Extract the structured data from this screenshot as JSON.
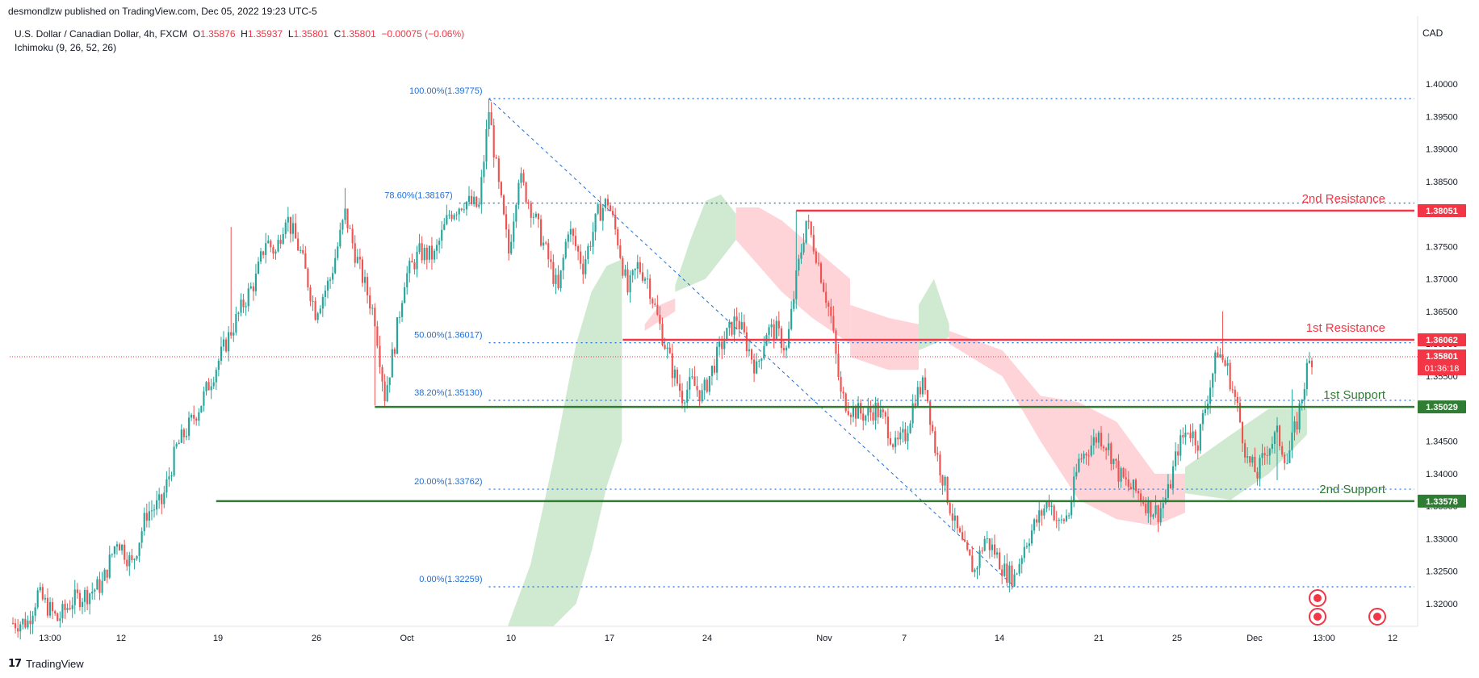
{
  "header": {
    "published": "desmondlzw published on TradingView.com, Dec 05, 2022 19:23 UTC-5",
    "symbol": "U.S. Dollar / Canadian Dollar, 4h, FXCM",
    "o_label": "O",
    "o_value": "1.35876",
    "h_label": "H",
    "h_value": "1.35937",
    "l_label": "L",
    "l_value": "1.35801",
    "c_label": "C",
    "c_value": "1.35801",
    "change": "−0.00075 (−0.06%)",
    "indicator": "Ichimoku (9, 26, 52, 26)",
    "currency": "CAD"
  },
  "footer": {
    "brand": "TradingView"
  },
  "colors": {
    "bull": "#26a69a",
    "bear": "#ef5350",
    "resistance": "#f23645",
    "support": "#2e7d32",
    "fib": "#1e6fd9",
    "cloud_bull": "#c8e6c9",
    "cloud_bear": "#ffcdd2"
  },
  "chart_data": {
    "type": "candlestick",
    "y_range": [
      1.3165,
      1.403
    ],
    "y_ticks": [
      "1.40000",
      "1.39500",
      "1.39000",
      "1.38500",
      "1.38000",
      "1.37500",
      "1.37000",
      "1.36500",
      "1.36000",
      "1.35500",
      "1.35000",
      "1.34500",
      "1.34000",
      "1.33500",
      "1.33000",
      "1.32500",
      "1.32000"
    ],
    "x_ticks": [
      "13:00",
      "12",
      "19",
      "26",
      "Oct",
      "10",
      "17",
      "24",
      "Nov",
      "7",
      "14",
      "21",
      "25",
      "Dec",
      "13:00",
      "12"
    ],
    "fib_levels": [
      {
        "label": "100.00%(1.39775)",
        "value": 1.39775
      },
      {
        "label": "78.60%(1.38167)",
        "value": 1.38167
      },
      {
        "label": "50.00%(1.36017)",
        "value": 1.36017
      },
      {
        "label": "38.20%(1.35130)",
        "value": 1.3513
      },
      {
        "label": "20.00%(1.33762)",
        "value": 1.33762
      },
      {
        "label": "0.00%(1.32259)",
        "value": 1.32259
      }
    ],
    "levels": [
      {
        "name": "2nd Resistance",
        "value": 1.38051,
        "tag": "1.38051",
        "kind": "resistance"
      },
      {
        "name": "1st Resistance",
        "value": 1.36062,
        "tag": "1.36062",
        "kind": "resistance"
      },
      {
        "name": "1st Support",
        "value": 1.35029,
        "tag": "1.35029",
        "kind": "support"
      },
      {
        "name": "2nd Support",
        "value": 1.33578,
        "tag": "1.33578",
        "kind": "support"
      }
    ],
    "last_price": {
      "value": 1.35801,
      "tag": "1.35801",
      "countdown": "01:36:18"
    },
    "price_path": [
      [
        0,
        1.317
      ],
      [
        6,
        1.3172
      ],
      [
        10,
        1.3215
      ],
      [
        18,
        1.3175
      ],
      [
        24,
        1.3205
      ],
      [
        30,
        1.3215
      ],
      [
        36,
        1.323
      ],
      [
        42,
        1.33
      ],
      [
        48,
        1.326
      ],
      [
        54,
        1.334
      ],
      [
        60,
        1.3355
      ],
      [
        66,
        1.344
      ],
      [
        72,
        1.348
      ],
      [
        76,
        1.351
      ],
      [
        82,
        1.3565
      ],
      [
        88,
        1.362
      ],
      [
        94,
        1.367
      ],
      [
        98,
        1.37
      ],
      [
        102,
        1.376
      ],
      [
        106,
        1.374
      ],
      [
        110,
        1.38
      ],
      [
        116,
        1.374
      ],
      [
        122,
        1.365
      ],
      [
        128,
        1.37
      ],
      [
        134,
        1.38
      ],
      [
        138,
        1.374
      ],
      [
        142,
        1.369
      ],
      [
        146,
        1.364
      ],
      [
        150,
        1.352
      ],
      [
        154,
        1.36
      ],
      [
        158,
        1.37
      ],
      [
        164,
        1.374
      ],
      [
        170,
        1.3735
      ],
      [
        176,
        1.38
      ],
      [
        182,
        1.382
      ],
      [
        188,
        1.381
      ],
      [
        192,
        1.396
      ],
      [
        196,
        1.384
      ],
      [
        200,
        1.374
      ],
      [
        204,
        1.386
      ],
      [
        210,
        1.38
      ],
      [
        216,
        1.373
      ],
      [
        220,
        1.368
      ],
      [
        224,
        1.378
      ],
      [
        230,
        1.372
      ],
      [
        236,
        1.38
      ],
      [
        240,
        1.382
      ],
      [
        244,
        1.376
      ],
      [
        248,
        1.368
      ],
      [
        252,
        1.372
      ],
      [
        256,
        1.37
      ],
      [
        260,
        1.364
      ],
      [
        266,
        1.356
      ],
      [
        270,
        1.352
      ],
      [
        274,
        1.354
      ],
      [
        278,
        1.352
      ],
      [
        282,
        1.356
      ],
      [
        286,
        1.36
      ],
      [
        292,
        1.364
      ],
      [
        296,
        1.36
      ],
      [
        300,
        1.356
      ],
      [
        304,
        1.362
      ],
      [
        308,
        1.362
      ],
      [
        312,
        1.359
      ],
      [
        316,
        1.37
      ],
      [
        320,
        1.379
      ],
      [
        324,
        1.374
      ],
      [
        330,
        1.364
      ],
      [
        334,
        1.352
      ],
      [
        338,
        1.35
      ],
      [
        344,
        1.349
      ],
      [
        348,
        1.35
      ],
      [
        352,
        1.348
      ],
      [
        356,
        1.344
      ],
      [
        360,
        1.346
      ],
      [
        364,
        1.352
      ],
      [
        368,
        1.354
      ],
      [
        372,
        1.344
      ],
      [
        376,
        1.338
      ],
      [
        380,
        1.332
      ],
      [
        384,
        1.328
      ],
      [
        388,
        1.325
      ],
      [
        392,
        1.33
      ],
      [
        396,
        1.328
      ],
      [
        400,
        1.325
      ],
      [
        404,
        1.324
      ],
      [
        408,
        1.329
      ],
      [
        412,
        1.332
      ],
      [
        418,
        1.336
      ],
      [
        422,
        1.332
      ],
      [
        426,
        1.334
      ],
      [
        430,
        1.342
      ],
      [
        434,
        1.344
      ],
      [
        438,
        1.346
      ],
      [
        442,
        1.344
      ],
      [
        446,
        1.34
      ],
      [
        450,
        1.338
      ],
      [
        454,
        1.337
      ],
      [
        458,
        1.335
      ],
      [
        462,
        1.334
      ],
      [
        466,
        1.337
      ],
      [
        470,
        1.344
      ],
      [
        474,
        1.347
      ],
      [
        478,
        1.345
      ],
      [
        482,
        1.352
      ],
      [
        486,
        1.359
      ],
      [
        490,
        1.356
      ],
      [
        494,
        1.35
      ],
      [
        498,
        1.342
      ],
      [
        502,
        1.34
      ],
      [
        506,
        1.344
      ],
      [
        510,
        1.346
      ],
      [
        514,
        1.342
      ],
      [
        518,
        1.348
      ],
      [
        522,
        1.356
      ],
      [
        524,
        1.358
      ]
    ],
    "cloud_segments": [
      {
        "kind": "bull",
        "x": [
          1.3,
          1.36,
          1.42,
          1.48,
          1.52,
          1.56,
          1.6
        ],
        "top": [
          1.3165,
          1.326,
          1.342,
          1.36,
          1.368,
          1.372,
          1.373
        ],
        "bottom": [
          1.3165,
          1.3165,
          1.3165,
          1.32,
          1.328,
          1.338,
          1.345
        ]
      },
      {
        "kind": "bear",
        "x": [
          1.66,
          1.7,
          1.74
        ],
        "top": [
          1.363,
          1.366,
          1.367
        ],
        "bottom": [
          1.362,
          1.3635,
          1.365
        ]
      },
      {
        "kind": "bull",
        "x": [
          1.74,
          1.78,
          1.82,
          1.86,
          1.9
        ],
        "top": [
          1.369,
          1.376,
          1.382,
          1.383,
          1.38
        ],
        "bottom": [
          1.368,
          1.369,
          1.37,
          1.373,
          1.376
        ]
      },
      {
        "kind": "bear",
        "x": [
          1.9,
          1.96,
          2.02,
          2.1,
          2.2
        ],
        "top": [
          1.381,
          1.381,
          1.379,
          1.375,
          1.37
        ],
        "bottom": [
          1.376,
          1.372,
          1.368,
          1.364,
          1.36
        ]
      },
      {
        "kind": "bear",
        "x": [
          2.2,
          2.3,
          2.38
        ],
        "top": [
          1.366,
          1.364,
          1.363
        ],
        "bottom": [
          1.358,
          1.356,
          1.356
        ]
      },
      {
        "kind": "bull",
        "x": [
          2.38,
          2.42,
          2.46
        ],
        "top": [
          1.366,
          1.37,
          1.363
        ],
        "bottom": [
          1.359,
          1.36,
          1.361
        ]
      },
      {
        "kind": "bear",
        "x": [
          2.46,
          2.6,
          2.7,
          2.8,
          2.9,
          3.0,
          3.08
        ],
        "top": [
          1.362,
          1.359,
          1.352,
          1.351,
          1.348,
          1.34,
          1.34
        ],
        "bottom": [
          1.36,
          1.355,
          1.345,
          1.336,
          1.333,
          1.332,
          1.334
        ]
      },
      {
        "kind": "bull",
        "x": [
          3.08,
          3.2,
          3.3,
          3.4
        ],
        "top": [
          1.341,
          1.346,
          1.35,
          1.35
        ],
        "bottom": [
          1.337,
          1.336,
          1.34,
          1.346
        ]
      }
    ],
    "wick_highs": [
      [
        88,
        1.378
      ],
      [
        134,
        1.384
      ],
      [
        192,
        1.3977
      ],
      [
        240,
        1.383
      ],
      [
        316,
        1.3805
      ],
      [
        488,
        1.365
      ],
      [
        516,
        1.353
      ]
    ],
    "wick_lows": [
      [
        146,
        1.3505
      ],
      [
        270,
        1.35
      ],
      [
        404,
        1.3226
      ],
      [
        460,
        1.333
      ],
      [
        510,
        1.339
      ]
    ],
    "event_icons": 3
  }
}
